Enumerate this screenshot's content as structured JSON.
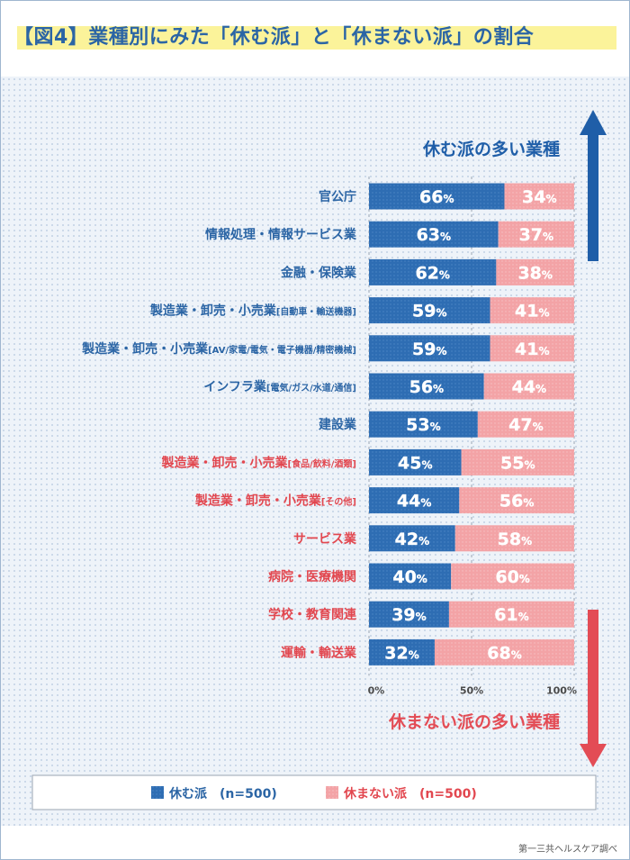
{
  "title": "【図4】業種別にみた「休む派」と「休まない派」の割合",
  "chart_data": {
    "type": "bar",
    "stacked": true,
    "orientation": "horizontal",
    "categories": [
      "官公庁",
      "情報処理・情報サービス業",
      "金融・保険業",
      "製造業・卸売・小売業[自動車・輸送機器]",
      "製造業・卸売・小売業[AV/家電/電気・電子機器/精密機械]",
      "インフラ業[電気/ガス/水道/通信]",
      "建設業",
      "製造業・卸売・小売業[食品/飲料/酒類]",
      "製造業・卸売・小売業[その他]",
      "サービス業",
      "病院・医療機関",
      "学校・教育関連",
      "運輸・輸送業"
    ],
    "category_labels": [
      {
        "main": "官公庁",
        "sub": ""
      },
      {
        "main": "情報処理・情報サービス業",
        "sub": ""
      },
      {
        "main": "金融・保険業",
        "sub": ""
      },
      {
        "main": "製造業・卸売・小売業",
        "sub": "[自動車・輸送機器]"
      },
      {
        "main": "製造業・卸売・小売業",
        "sub": "[AV/家電/電気・電子機器/精密機械]"
      },
      {
        "main": "インフラ業",
        "sub": "[電気/ガス/水道/通信]"
      },
      {
        "main": "建設業",
        "sub": ""
      },
      {
        "main": "製造業・卸売・小売業",
        "sub": "[食品/飲料/酒類]"
      },
      {
        "main": "製造業・卸売・小売業",
        "sub": "[その他]"
      },
      {
        "main": "サービス業",
        "sub": ""
      },
      {
        "main": "病院・医療機関",
        "sub": ""
      },
      {
        "main": "学校・教育関連",
        "sub": ""
      },
      {
        "main": "運輸・輸送業",
        "sub": ""
      }
    ],
    "category_group": [
      "rest",
      "rest",
      "rest",
      "rest",
      "rest",
      "rest",
      "rest",
      "work",
      "work",
      "work",
      "work",
      "work",
      "work"
    ],
    "series": [
      {
        "name": "休む派",
        "values": [
          66,
          63,
          62,
          59,
          59,
          56,
          53,
          45,
          44,
          42,
          40,
          39,
          32
        ],
        "color": "#2e6db3"
      },
      {
        "name": "休まない派",
        "values": [
          34,
          37,
          38,
          41,
          41,
          44,
          47,
          55,
          56,
          58,
          60,
          61,
          68
        ],
        "color": "#f3a3a6"
      }
    ],
    "value_suffix": "%",
    "xlim": [
      0,
      100
    ],
    "x_ticks": [
      "0%",
      "50%",
      "100%"
    ],
    "legend": {
      "position": "bottom",
      "n_label": "(n=500)"
    },
    "annotations": {
      "top": "休む派の多い業種",
      "bottom": "休まない派の多い業種"
    },
    "colors": {
      "rest_label": "#2b65a5",
      "work_label": "#e2474f",
      "arrow_blue": "#1f5ea8",
      "arrow_red": "#e34c55"
    }
  },
  "credit": "第一三共ヘルスケア調べ"
}
